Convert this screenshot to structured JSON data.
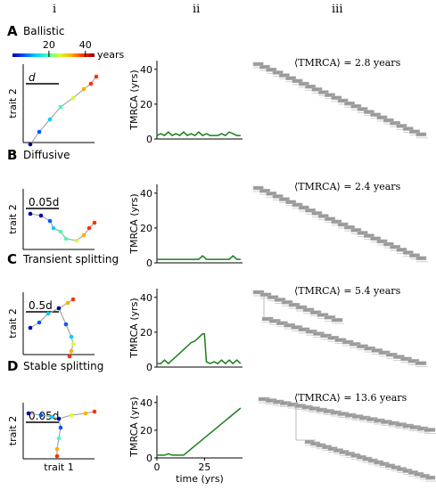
{
  "columns": [
    "i",
    "ii",
    "iii"
  ],
  "colorbar": {
    "ticks": [
      "20",
      "40"
    ],
    "tick_values": [
      20,
      40
    ],
    "max": 45,
    "unit": "years",
    "colors": [
      "#0000a0",
      "#0055ff",
      "#00d0ff",
      "#40ffb0",
      "#d0ff30",
      "#ffb000",
      "#ff3000",
      "#900000"
    ]
  },
  "panels": [
    {
      "letter": "A",
      "title": "Ballistic",
      "scale_label": "d",
      "ylabel": "trait 2",
      "tmrca_text": "⟨TMRCA⟩ = 2.8 years",
      "style": "ballistic"
    },
    {
      "letter": "B",
      "title": "Diffusive",
      "scale_label": "0.05d",
      "ylabel": "trait 2",
      "tmrca_text": "⟨TMRCA⟩ = 2.4 years",
      "style": "diffusive"
    },
    {
      "letter": "C",
      "title": "Transient splitting",
      "scale_label": "0.5d",
      "ylabel": "trait 2",
      "tmrca_text": "⟨TMRCA⟩ = 5.4 years",
      "style": "transient"
    },
    {
      "letter": "D",
      "title": "Stable splitting",
      "scale_label": "0.05d",
      "ylabel": "trait 2",
      "xlabel": "trait 1",
      "tmrca_text": "⟨TMRCA⟩ = 13.6 years",
      "style": "stable"
    }
  ],
  "chart_data": [
    {
      "type": "line",
      "panel": "A",
      "ylabel": "TMRCA (yrs)",
      "ylim": [
        0,
        45
      ],
      "xlim": [
        0,
        45
      ],
      "yticks": [
        0,
        20,
        40
      ],
      "series": [
        {
          "color": "#1a7f1a",
          "x": [
            0,
            2,
            4,
            6,
            8,
            10,
            12,
            14,
            16,
            18,
            20,
            22,
            24,
            26,
            28,
            30,
            32,
            34,
            36,
            38,
            40,
            42,
            44
          ],
          "y": [
            2,
            3,
            2,
            4,
            2,
            3,
            2,
            4,
            2,
            3,
            2,
            4,
            2,
            3,
            2,
            2,
            2,
            3,
            2,
            4,
            3,
            2,
            2
          ]
        }
      ]
    },
    {
      "type": "line",
      "panel": "B",
      "ylabel": "TMRCA (yrs)",
      "ylim": [
        0,
        45
      ],
      "xlim": [
        0,
        45
      ],
      "yticks": [
        0,
        20,
        40
      ],
      "series": [
        {
          "color": "#1a7f1a",
          "x": [
            0,
            2,
            4,
            6,
            8,
            10,
            12,
            14,
            16,
            18,
            20,
            22,
            24,
            26,
            28,
            30,
            32,
            34,
            36,
            38,
            40,
            42,
            44
          ],
          "y": [
            2,
            2,
            2,
            2,
            2,
            2,
            2,
            2,
            2,
            2,
            2,
            2,
            4,
            2,
            2,
            2,
            2,
            2,
            2,
            2,
            4,
            2,
            2
          ]
        }
      ]
    },
    {
      "type": "line",
      "panel": "C",
      "ylabel": "TMRCA (yrs)",
      "ylim": [
        0,
        45
      ],
      "xlim": [
        0,
        45
      ],
      "yticks": [
        0,
        20,
        40
      ],
      "series": [
        {
          "color": "#1a7f1a",
          "x": [
            0,
            2,
            4,
            6,
            8,
            10,
            12,
            14,
            16,
            18,
            20,
            22,
            24,
            25,
            26,
            28,
            30,
            32,
            34,
            36,
            38,
            40,
            42,
            44
          ],
          "y": [
            2,
            2,
            4,
            2,
            4,
            6,
            8,
            10,
            12,
            14,
            15,
            17,
            19,
            19,
            3,
            2,
            3,
            2,
            4,
            2,
            4,
            2,
            4,
            2
          ]
        }
      ]
    },
    {
      "type": "line",
      "panel": "D",
      "ylabel": "TMRCA (yrs)",
      "xlabel": "time (yrs)",
      "ylim": [
        0,
        45
      ],
      "xlim": [
        0,
        45
      ],
      "yticks": [
        0,
        20,
        40
      ],
      "xticks": [
        0,
        25
      ],
      "series": [
        {
          "color": "#1a7f1a",
          "x": [
            0,
            2,
            4,
            6,
            8,
            10,
            12,
            14,
            44
          ],
          "y": [
            2,
            2,
            2,
            3,
            2,
            2,
            2,
            2,
            36
          ]
        }
      ]
    }
  ]
}
